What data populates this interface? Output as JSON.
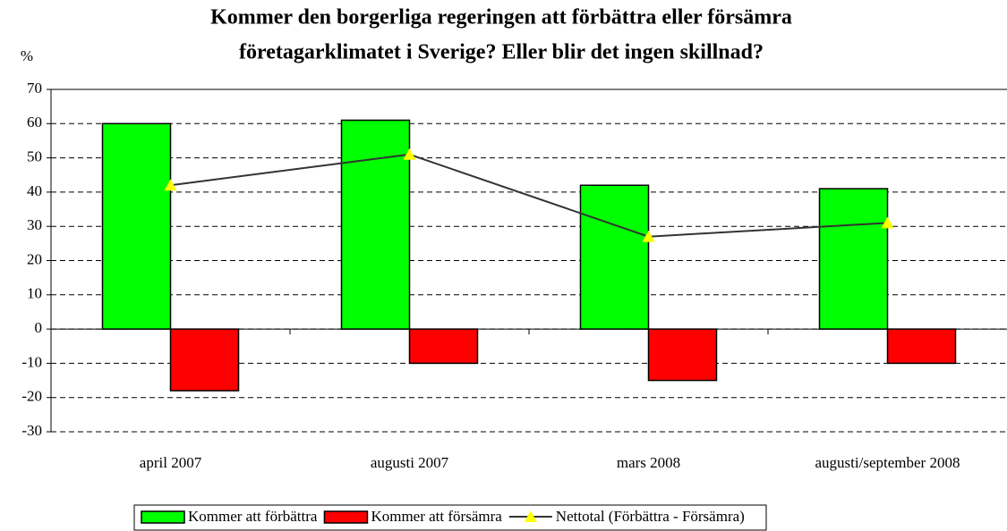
{
  "chart_data": {
    "type": "bar",
    "title": "Kommer den borgerliga regeringen att förbättra eller försämra",
    "subtitle": "företagarklimatet i Sverige? Eller blir det ingen skillnad?",
    "y_label": "%",
    "categories": [
      "april 2007",
      "augusti 2007",
      "mars 2008",
      "augusti/september 2008"
    ],
    "series": [
      {
        "name": "Kommer att förbättra",
        "color": "#00ff00",
        "values": [
          60,
          61,
          42,
          41
        ]
      },
      {
        "name": "Kommer att försämra",
        "color": "#ff0000",
        "values": [
          -18,
          -10,
          -15,
          -10
        ]
      },
      {
        "name": "Nettotal (Förbättra - Försämra)",
        "type": "line",
        "color": "#333333",
        "marker_color": "#ffff00",
        "values": [
          42,
          51,
          27,
          31
        ]
      }
    ],
    "ylim": [
      -30,
      70
    ],
    "yticks": [
      -30,
      -20,
      -10,
      0,
      10,
      20,
      30,
      40,
      50,
      60,
      70
    ],
    "grid": true
  }
}
